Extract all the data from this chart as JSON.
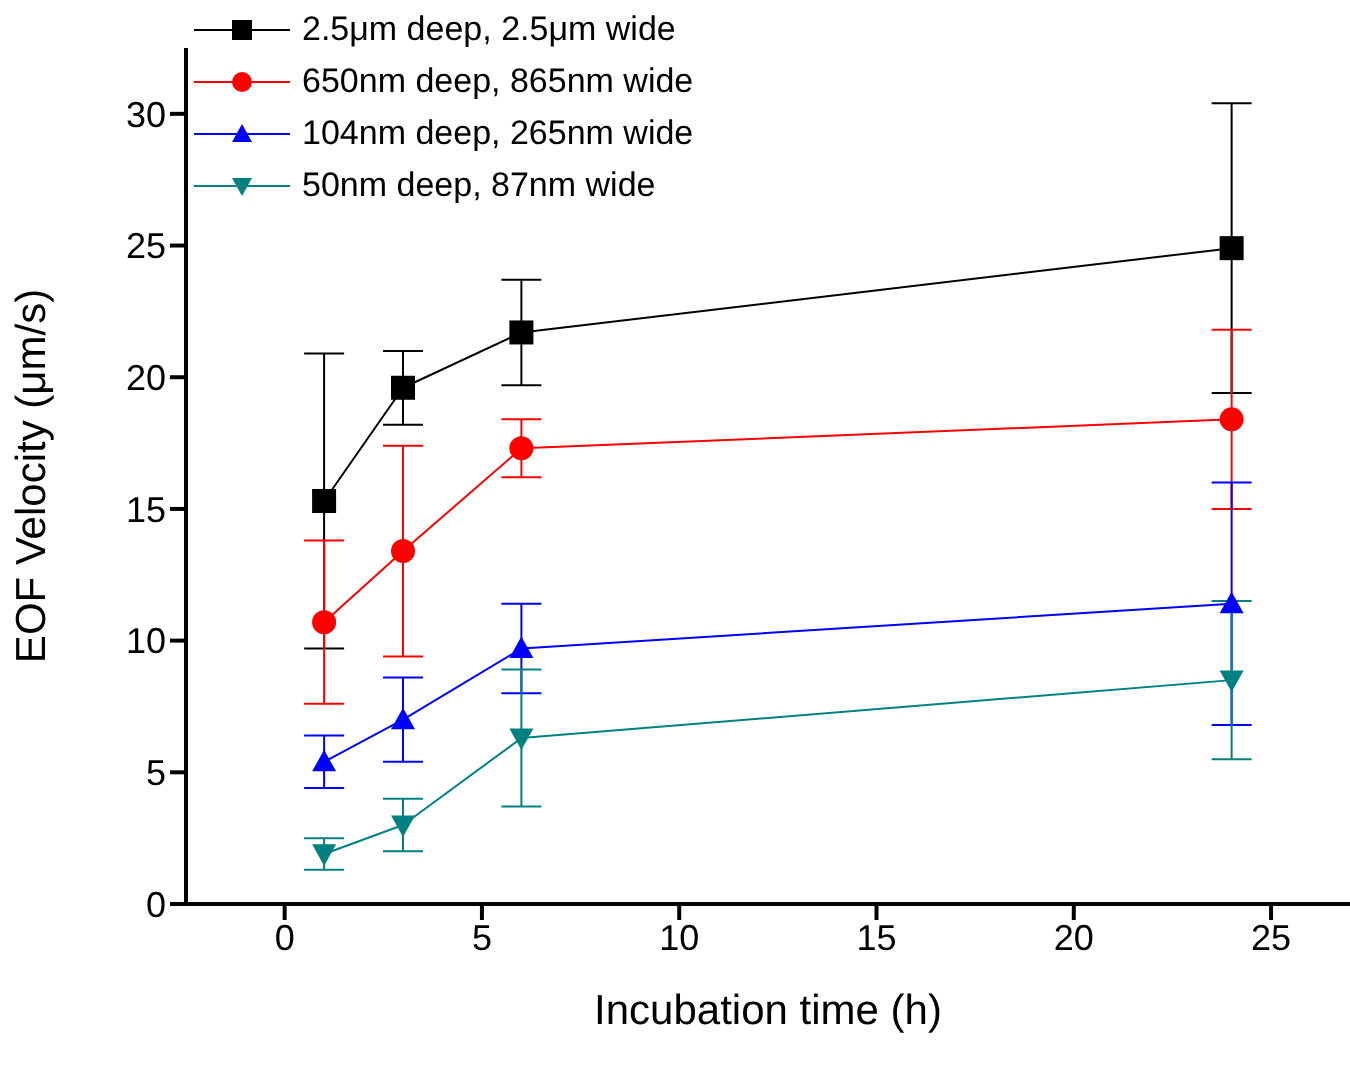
{
  "chart_data": {
    "type": "line",
    "xlabel": "Incubation time (h)",
    "ylabel": "EOF Velocity (μm/s)",
    "x": [
      1,
      3,
      6,
      24
    ],
    "xlim": [
      -2.5,
      27
    ],
    "xticks": [
      0,
      5,
      10,
      15,
      20,
      25
    ],
    "ylim": [
      0,
      32.5
    ],
    "yticks": [
      0,
      5,
      10,
      15,
      20,
      25,
      30
    ],
    "legend": "top left",
    "grid": false,
    "series": [
      {
        "name": "2.5μm deep, 2.5μm wide",
        "color": "#000000",
        "marker": "square",
        "values": [
          15.3,
          19.6,
          21.7,
          24.9
        ],
        "errors": [
          5.6,
          1.4,
          2.0,
          5.5
        ]
      },
      {
        "name": "650nm deep, 865nm wide",
        "color": "#ff0000",
        "marker": "circle",
        "values": [
          10.7,
          13.4,
          17.3,
          18.4
        ],
        "errors": [
          3.1,
          4.0,
          1.1,
          3.4
        ]
      },
      {
        "name": "104nm deep, 265nm wide",
        "color": "#0000ff",
        "marker": "triangle",
        "values": [
          5.4,
          7.0,
          9.7,
          11.4
        ],
        "errors": [
          1.0,
          1.6,
          1.7,
          4.6
        ]
      },
      {
        "name": "50nm deep, 87nm wide",
        "color": "#008080",
        "marker": "triangle-down",
        "values": [
          1.9,
          3.0,
          6.3,
          8.5
        ],
        "errors": [
          0.6,
          1.0,
          2.6,
          3.0
        ]
      }
    ]
  }
}
